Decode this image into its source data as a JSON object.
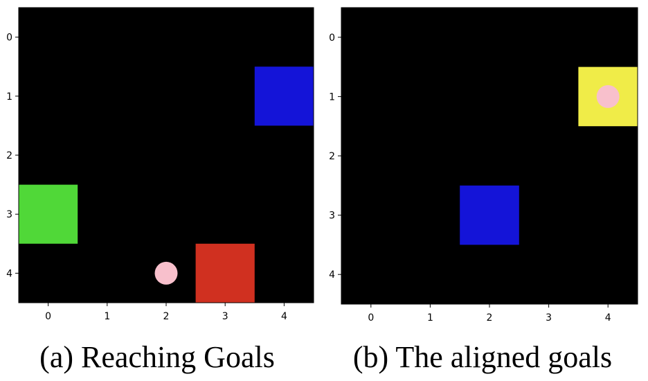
{
  "panels": [
    {
      "caption": "(a) Reaching Goals",
      "x_ticks": [
        "0",
        "1",
        "2",
        "3",
        "4"
      ],
      "y_ticks": [
        "0",
        "1",
        "2",
        "3",
        "4"
      ],
      "cells": [
        {
          "col": 4,
          "row": 1,
          "color": "#1414d8",
          "name": "blue-goal-square"
        },
        {
          "col": 0,
          "row": 3,
          "color": "#50d838",
          "name": "green-goal-square"
        },
        {
          "col": 3,
          "row": 4,
          "color": "#d03020",
          "name": "red-goal-square"
        }
      ],
      "agent": {
        "col": 2,
        "row": 4,
        "color": "#f8c0cc"
      }
    },
    {
      "caption": "(b) The aligned goals",
      "x_ticks": [
        "0",
        "1",
        "2",
        "3",
        "4"
      ],
      "y_ticks": [
        "0",
        "1",
        "2",
        "3",
        "4"
      ],
      "cells": [
        {
          "col": 4,
          "row": 1,
          "color": "#f0ec48",
          "name": "yellow-goal-square"
        },
        {
          "col": 2,
          "row": 3,
          "color": "#1414d8",
          "name": "blue-goal-square"
        }
      ],
      "agent": {
        "col": 4,
        "row": 1,
        "color": "#f8c0cc"
      }
    }
  ]
}
